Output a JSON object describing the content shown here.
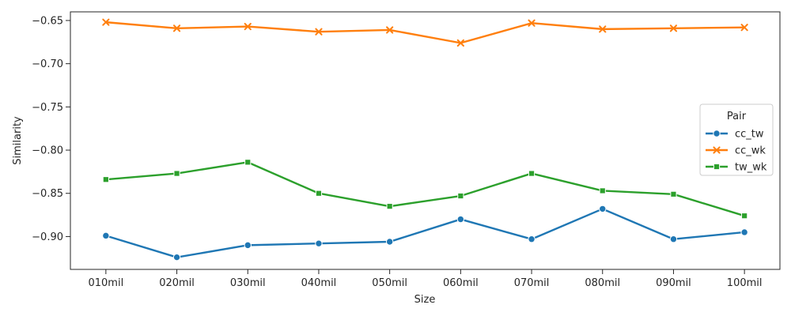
{
  "chart_data": {
    "type": "line",
    "xlabel": "Size",
    "ylabel": "Similarity",
    "categories": [
      "010mil",
      "020mil",
      "030mil",
      "040mil",
      "050mil",
      "060mil",
      "070mil",
      "080mil",
      "090mil",
      "100mil"
    ],
    "ylim": [
      -0.938,
      -0.64
    ],
    "yticks": [
      -0.65,
      -0.7,
      -0.75,
      -0.8,
      -0.85,
      -0.9
    ],
    "ytick_labels": [
      "−0.65",
      "−0.70",
      "−0.75",
      "−0.80",
      "−0.85",
      "−0.90"
    ],
    "grid": false,
    "legend": {
      "title": "Pair",
      "placement": "center-right"
    },
    "series": [
      {
        "name": "cc_tw",
        "color": "#1f77b4",
        "marker": "circle",
        "values": [
          -0.899,
          -0.924,
          -0.91,
          -0.908,
          -0.906,
          -0.88,
          -0.903,
          -0.868,
          -0.903,
          -0.895
        ]
      },
      {
        "name": "cc_wk",
        "color": "#ff7f0e",
        "marker": "x",
        "values": [
          -0.652,
          -0.659,
          -0.657,
          -0.663,
          -0.661,
          -0.676,
          -0.653,
          -0.66,
          -0.659,
          -0.658
        ]
      },
      {
        "name": "tw_wk",
        "color": "#2ca02c",
        "marker": "square",
        "values": [
          -0.834,
          -0.827,
          -0.814,
          -0.85,
          -0.865,
          -0.853,
          -0.827,
          -0.847,
          -0.851,
          -0.876
        ]
      }
    ]
  }
}
